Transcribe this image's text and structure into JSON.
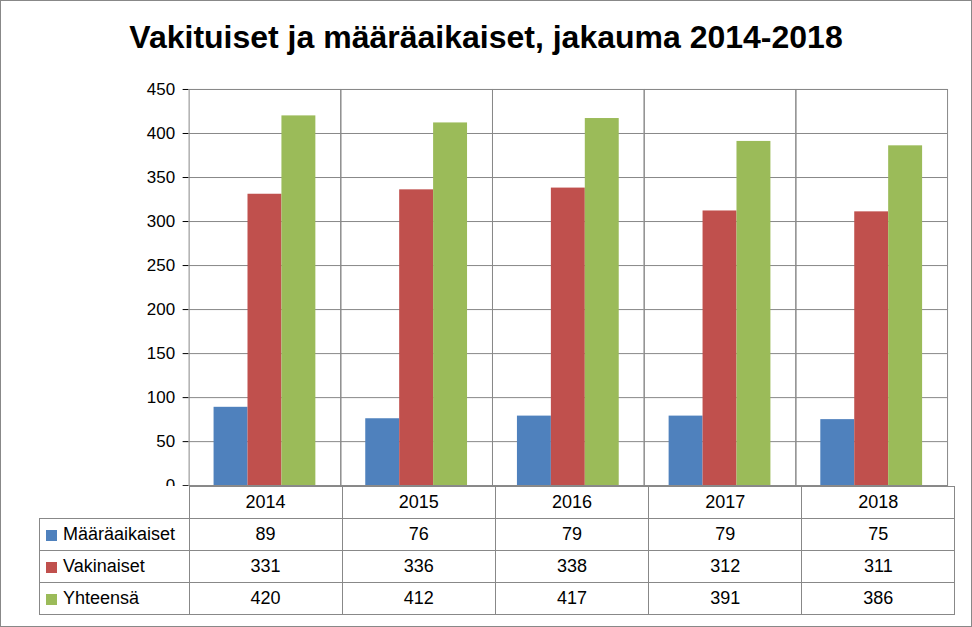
{
  "chart_data": {
    "type": "bar",
    "title": "Vakituiset ja määräaikaiset, jakauma 2014-2018",
    "categories": [
      "2014",
      "2015",
      "2016",
      "2017",
      "2018"
    ],
    "series": [
      {
        "name": "Määräaikaiset",
        "color": "#4f81bd",
        "values": [
          89,
          76,
          79,
          79,
          75
        ]
      },
      {
        "name": "Vakinaiset",
        "color": "#c0504d",
        "values": [
          331,
          336,
          338,
          312,
          311
        ]
      },
      {
        "name": "Yhteensä",
        "color": "#9bbb59",
        "values": [
          420,
          412,
          417,
          391,
          386
        ]
      }
    ],
    "ylim": [
      0,
      450
    ],
    "yticks": [
      0,
      50,
      100,
      150,
      200,
      250,
      300,
      350,
      400,
      450
    ],
    "grid": true
  }
}
